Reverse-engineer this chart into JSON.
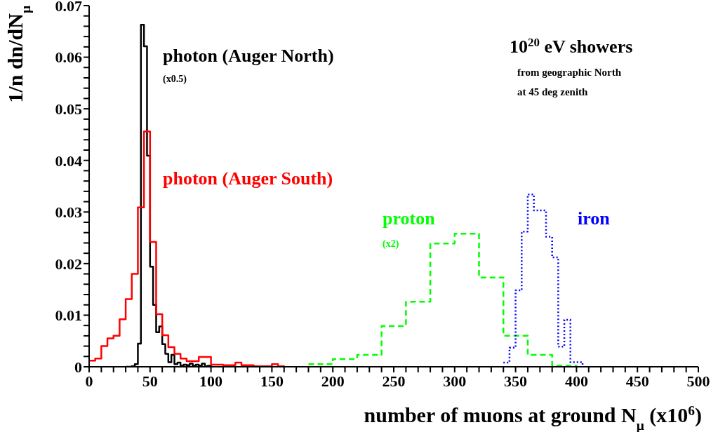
{
  "chart_data": {
    "type": "step",
    "xlabel": "number of muons at ground N$_{μ}$ (x10$^{6}$)",
    "ylabel": "1/n dn/dN$_{μ}$",
    "xlim": [
      0,
      500
    ],
    "ylim": [
      0,
      0.07
    ],
    "xticks": [
      0,
      {
        "value": 10,
        "label": null
      },
      {
        "value": 20,
        "label": null
      },
      {
        "value": 30,
        "label": null
      },
      {
        "value": 40,
        "label": null
      },
      50,
      {
        "value": 60,
        "label": null
      },
      {
        "value": 70,
        "label": null
      },
      {
        "value": 80,
        "label": null
      },
      {
        "value": 90,
        "label": null
      },
      100,
      {
        "value": 110,
        "label": null
      },
      {
        "value": 120,
        "label": null
      },
      {
        "value": 130,
        "label": null
      },
      {
        "value": 140,
        "label": null
      },
      150,
      {
        "value": 160,
        "label": null
      },
      {
        "value": 170,
        "label": null
      },
      {
        "value": 180,
        "label": null
      },
      {
        "value": 190,
        "label": null
      },
      200,
      {
        "value": 210,
        "label": null
      },
      {
        "value": 220,
        "label": null
      },
      {
        "value": 230,
        "label": null
      },
      {
        "value": 240,
        "label": null
      },
      250,
      {
        "value": 260,
        "label": null
      },
      {
        "value": 270,
        "label": null
      },
      {
        "value": 280,
        "label": null
      },
      {
        "value": 290,
        "label": null
      },
      300,
      {
        "value": 310,
        "label": null
      },
      {
        "value": 320,
        "label": null
      },
      {
        "value": 330,
        "label": null
      },
      {
        "value": 340,
        "label": null
      },
      350,
      {
        "value": 360,
        "label": null
      },
      {
        "value": 370,
        "label": null
      },
      {
        "value": 380,
        "label": null
      },
      {
        "value": 390,
        "label": null
      },
      400,
      {
        "value": 410,
        "label": null
      },
      {
        "value": 420,
        "label": null
      },
      {
        "value": 430,
        "label": null
      },
      {
        "value": 440,
        "label": null
      },
      450,
      {
        "value": 460,
        "label": null
      },
      {
        "value": 470,
        "label": null
      },
      {
        "value": 480,
        "label": null
      },
      {
        "value": 490,
        "label": null
      },
      500
    ],
    "yticks": [
      0,
      {
        "value": 0.002,
        "label": null
      },
      {
        "value": 0.004,
        "label": null
      },
      {
        "value": 0.006,
        "label": null
      },
      {
        "value": 0.008,
        "label": null
      },
      0.01,
      {
        "value": 0.012,
        "label": null
      },
      {
        "value": 0.014,
        "label": null
      },
      {
        "value": 0.016,
        "label": null
      },
      {
        "value": 0.018,
        "label": null
      },
      0.02,
      {
        "value": 0.022,
        "label": null
      },
      {
        "value": 0.024,
        "label": null
      },
      {
        "value": 0.026,
        "label": null
      },
      {
        "value": 0.028,
        "label": null
      },
      0.03,
      {
        "value": 0.032,
        "label": null
      },
      {
        "value": 0.034,
        "label": null
      },
      {
        "value": 0.036,
        "label": null
      },
      {
        "value": 0.038,
        "label": null
      },
      0.04,
      {
        "value": 0.042,
        "label": null
      },
      {
        "value": 0.044,
        "label": null
      },
      {
        "value": 0.046,
        "label": null
      },
      {
        "value": 0.048,
        "label": null
      },
      0.05,
      {
        "value": 0.052,
        "label": null
      },
      {
        "value": 0.054,
        "label": null
      },
      {
        "value": 0.056,
        "label": null
      },
      {
        "value": 0.058,
        "label": null
      },
      0.06,
      {
        "value": 0.062,
        "label": null
      },
      {
        "value": 0.064,
        "label": null
      },
      {
        "value": 0.066,
        "label": null
      },
      {
        "value": 0.068,
        "label": null
      },
      0.07
    ],
    "series": [
      {
        "name": "photon (Auger North)",
        "color": "#000000",
        "line_style": "solid",
        "x": [
          30,
          32.5,
          35,
          37.5,
          40,
          42.5,
          45,
          47.5,
          50,
          52.5,
          55,
          57.5,
          60,
          62.5,
          65,
          67.5,
          70,
          72.5,
          75,
          77.5,
          80,
          82.5,
          85,
          87.5,
          90,
          92.5,
          95,
          97.5,
          100
        ],
        "values": [
          0,
          0,
          0.0001,
          0.0005,
          0.0045,
          0.0663,
          0.0621,
          0.0409,
          0.0194,
          0.012,
          0.0067,
          0.0078,
          0.0044,
          0.0025,
          0.0009,
          0.0023,
          0.0005,
          0.0008,
          0.0002,
          0.0004,
          0.0003,
          0.0006,
          0.0002,
          0.0004,
          0.0002,
          0.0006,
          0.0001,
          0.0002,
          0
        ]
      },
      {
        "name": "photon (Auger South)",
        "color": "#ff0000",
        "line_style": "solid",
        "x": [
          0,
          5,
          10,
          15,
          20,
          25,
          30,
          35,
          40,
          45,
          50,
          55,
          60,
          65,
          70,
          75,
          80,
          85,
          90,
          95,
          100,
          105,
          110,
          115,
          120,
          125,
          130,
          135,
          140,
          145,
          150,
          155,
          160
        ],
        "values": [
          0.0012,
          0.0016,
          0.004,
          0.0055,
          0.006,
          0.0092,
          0.0131,
          0.018,
          0.0309,
          0.0456,
          0.0242,
          0.0102,
          0.0061,
          0.0038,
          0.0025,
          0.0016,
          0.0011,
          0.0011,
          0.0019,
          0.0019,
          0.0004,
          0.0004,
          0.0003,
          0.0003,
          0.0008,
          0.0003,
          0.0003,
          0.0001,
          0.0001,
          0.0001,
          0.0005,
          0.0001,
          0
        ]
      },
      {
        "name": "proton",
        "color": "#00ff00",
        "line_style": "dashed",
        "x": [
          180,
          200,
          220,
          240,
          260,
          280,
          300,
          320,
          340,
          360,
          380,
          400
        ],
        "values": [
          0.0005,
          0.0015,
          0.0023,
          0.0079,
          0.0126,
          0.0239,
          0.0258,
          0.0173,
          0.006,
          0.0023,
          0.0002,
          0
        ]
      },
      {
        "name": "iron",
        "color": "#0000ff",
        "line_style": "dotted",
        "x": [
          340,
          345,
          350,
          355,
          360,
          365,
          370,
          375,
          380,
          385,
          390,
          395,
          400,
          405
        ],
        "values": [
          0.0008,
          0.0037,
          0.0148,
          0.0262,
          0.0334,
          0.0303,
          0.0303,
          0.0252,
          0.0212,
          0.0039,
          0.0091,
          0.0009,
          0.0009,
          0
        ]
      }
    ],
    "annotations": [
      "(x0.5)",
      "(x2)",
      "10$^{20}$ eV showers",
      "from geographic North",
      "at 45 deg zenith"
    ]
  }
}
